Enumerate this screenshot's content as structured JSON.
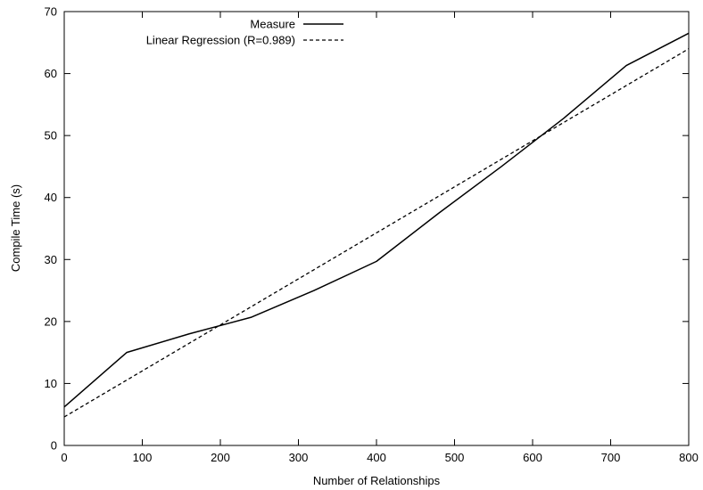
{
  "chart_data": {
    "type": "line",
    "xlabel": "Number of Relationships",
    "ylabel": "Compile Time (s)",
    "xlim": [
      0,
      800
    ],
    "ylim": [
      0,
      70
    ],
    "x_ticks": [
      0,
      100,
      200,
      300,
      400,
      500,
      600,
      700,
      800
    ],
    "y_ticks": [
      0,
      10,
      20,
      30,
      40,
      50,
      60,
      70
    ],
    "grid": false,
    "legend_position": "top-left",
    "series": [
      {
        "name": "Measure",
        "style": "solid",
        "color": "#000000",
        "x": [
          0,
          80,
          160,
          240,
          320,
          400,
          480,
          560,
          640,
          720,
          800
        ],
        "y": [
          6.2,
          15.0,
          18.0,
          20.7,
          25.0,
          29.7,
          37.5,
          45.0,
          52.8,
          61.3,
          66.5
        ]
      },
      {
        "name": "Linear Regression (R=0.989)",
        "style": "dashed",
        "color": "#000000",
        "x": [
          0,
          800
        ],
        "y": [
          4.6,
          64.0
        ]
      }
    ]
  }
}
